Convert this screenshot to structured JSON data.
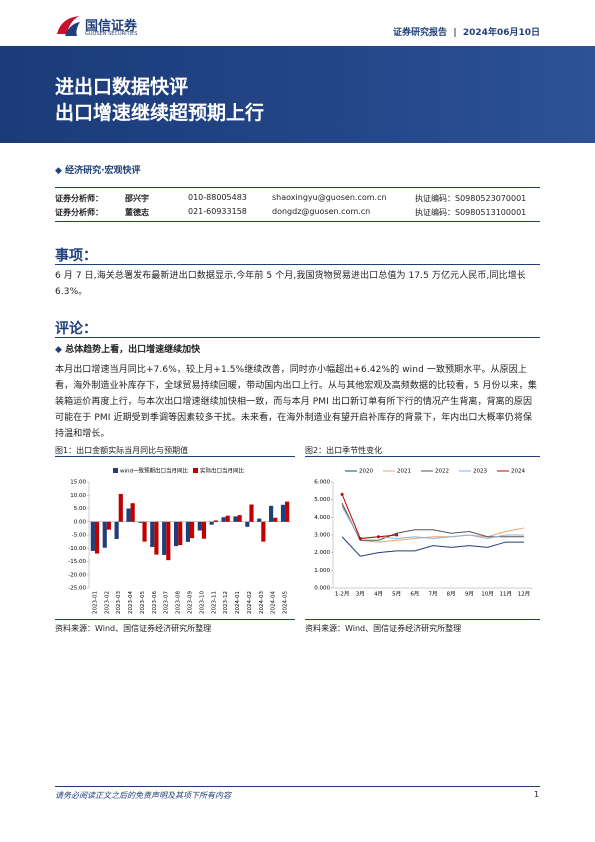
{
  "header": {
    "logo_cn": "国信证券",
    "logo_en": "GUOSEN SECURITIES",
    "report_type": "证券研究报告",
    "date": "2024年06月10日"
  },
  "banner": {
    "title": "进出口数据快评",
    "subtitle": "出口增速继续超预期上行"
  },
  "category": "经济研究·宏观快评",
  "analysts": [
    [
      "证券分析师：",
      "邵兴宇",
      "010-88005483",
      "shaoxingyu@guosen.com.cn",
      "执证编码：S0980523070001"
    ],
    [
      "证券分析师：",
      "董德志",
      "021-60933158",
      "dongdz@guosen.com.cn",
      "执证编码：S0980513100001"
    ]
  ],
  "sections": [
    {
      "heading": "事项：",
      "text": "6 月 7 日,海关总署发布最新进出口数据显示,今年前 5 个月,我国货物贸易进出口总值为 17.5 万亿元人民币,同比增长 6.3%。"
    },
    {
      "heading": "评论：",
      "bullet": "总体趋势上看，出口增速继续加快",
      "text": "本月出口增速当月同比+7.6%，较上月+1.5%继续改善，同时亦小幅超出+6.42%的 wind 一致预期水平。从原因上看，海外制造业补库存下，全球贸易持续回暖，带动国内出口上行。从与其他宏观及高频数据的比较看，5 月份以来，集装箱运价再度上行，与本次出口增速继续加快相一致，而与本月 PMI 出口新订单有所下行的情况产生背离，背离的原因可能在于 PMI 近期受到季调等因素较多干扰。未来看，在海外制造业有望开启补库存的背景下，年内出口大概率仍将保持温和增长。"
    }
  ],
  "figures": [
    {
      "caption": "图1：出口金额实际当月同比与预期值",
      "source": "资料来源：Wind、国信证券经济研究所整理"
    },
    {
      "caption": "图2：出口季节性变化",
      "source": "资料来源：Wind、国信证券经济研究所整理"
    }
  ],
  "chart_data": [
    {
      "type": "bar",
      "categories": [
        "2023-01",
        "2023-02",
        "2023-03",
        "2023-04",
        "2023-05",
        "2023-06",
        "2023-07",
        "2023-08",
        "2023-09",
        "2023-10",
        "2023-11",
        "2023-12",
        "2024-01",
        "2024-02",
        "2024-03",
        "2024-04",
        "2024-05"
      ],
      "series": [
        {
          "name": "wind一致预期出口当月同比",
          "color": "#1f3f7a",
          "values": [
            -11.0,
            -9.8,
            -6.5,
            5.0,
            -0.4,
            -9.5,
            -12.5,
            -9.2,
            -7.6,
            -3.3,
            -1.1,
            1.7,
            2.0,
            -1.9,
            1.2,
            6.0,
            6.4
          ]
        },
        {
          "name": "实际出口当月同比",
          "color": "#c00000",
          "values": [
            -12.0,
            -3.0,
            10.5,
            7.0,
            -7.5,
            -12.4,
            -14.5,
            -8.8,
            -6.2,
            -6.4,
            0.5,
            2.3,
            2.5,
            6.5,
            -7.5,
            1.5,
            7.6
          ]
        }
      ],
      "ylim": [
        -25,
        15
      ],
      "yticks": [
        {
          "value": -25,
          "label": "-25.00"
        },
        {
          "value": -20,
          "label": "-20.00"
        },
        {
          "value": -15,
          "label": "-15.00"
        },
        {
          "value": -10,
          "label": "-10.00"
        },
        {
          "value": -5,
          "label": "-5.00"
        },
        {
          "value": 0,
          "label": "0.00"
        },
        {
          "value": 5,
          "label": "5.00"
        },
        {
          "value": 10,
          "label": "10.00"
        },
        {
          "value": 15,
          "label": "15.00"
        }
      ]
    },
    {
      "type": "line",
      "categories": [
        "1-2月",
        "3月",
        "4月",
        "5月",
        "6月",
        "7月",
        "8月",
        "9月",
        "10月",
        "11月",
        "12月"
      ],
      "series": [
        {
          "name": "2020",
          "color": "#1f3f7a",
          "values": [
            2.9,
            1.8,
            2.0,
            2.1,
            2.1,
            2.4,
            2.3,
            2.4,
            2.3,
            2.6,
            2.6
          ]
        },
        {
          "name": "2021",
          "color": "#f0a070",
          "values": [
            4.7,
            2.7,
            2.6,
            2.7,
            2.8,
            2.9,
            2.9,
            3.0,
            2.9,
            3.2,
            3.4
          ]
        },
        {
          "name": "2022",
          "color": "#555555",
          "values": [
            4.8,
            2.7,
            2.7,
            3.1,
            3.3,
            3.3,
            3.1,
            3.2,
            2.9,
            2.9,
            2.9
          ]
        },
        {
          "name": "2023",
          "color": "#8ab4d8",
          "values": [
            4.6,
            2.8,
            2.9,
            2.8,
            2.9,
            2.8,
            2.9,
            3.0,
            2.8,
            3.0,
            3.0
          ]
        },
        {
          "name": "2024",
          "color": "#c00000",
          "values": [
            5.3,
            2.8,
            2.9,
            3.0,
            null,
            null,
            null,
            null,
            null,
            null,
            null
          ],
          "markers": true
        }
      ],
      "ylim": [
        0,
        6
      ],
      "yticks": [
        {
          "value": 0,
          "label": "0.000"
        },
        {
          "value": 1,
          "label": "1.000"
        },
        {
          "value": 2,
          "label": "2.000"
        },
        {
          "value": 3,
          "label": "3.000"
        },
        {
          "value": 4,
          "label": "4.000"
        },
        {
          "value": 5,
          "label": "5.000"
        },
        {
          "value": 6,
          "label": "6.000"
        }
      ]
    }
  ],
  "footer": {
    "disclaimer": "请务必阅读正文之后的免责声明及其项下所有内容",
    "page": "1"
  }
}
